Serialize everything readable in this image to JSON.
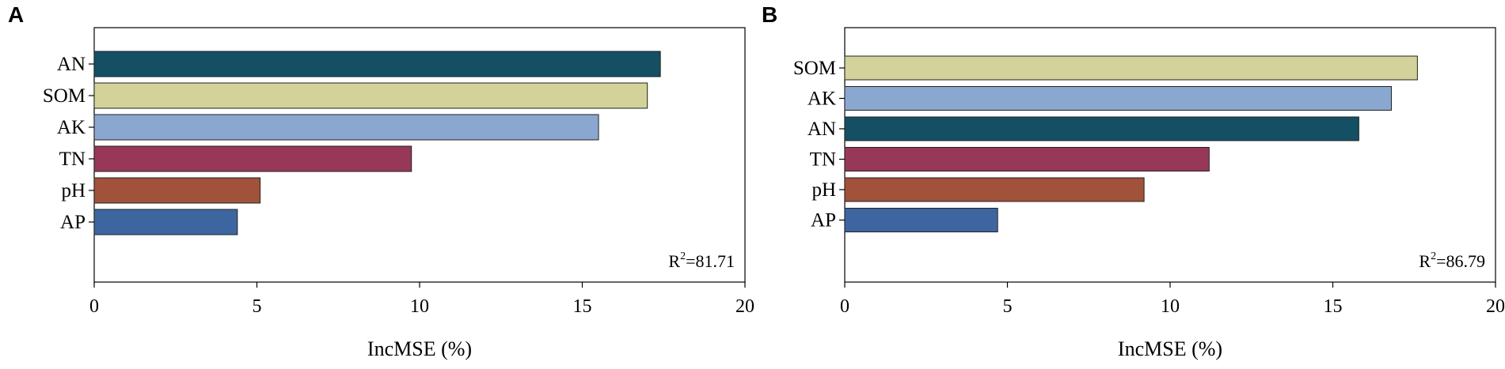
{
  "chart_data": [
    {
      "type": "bar",
      "orientation": "horizontal",
      "panel_label": "A",
      "categories": [
        "AN",
        "SOM",
        "AK",
        "TN",
        "pH",
        "AP"
      ],
      "values": [
        17.4,
        17.0,
        15.5,
        9.75,
        5.1,
        4.4
      ],
      "colors": [
        "#154f63",
        "#d3d29a",
        "#8aa7cf",
        "#973859",
        "#a1523a",
        "#3d66a0"
      ],
      "xlabel": "IncMSE (%)",
      "xlim": [
        0,
        20
      ],
      "xticks": [
        "0",
        "5",
        "10",
        "15",
        "20"
      ],
      "annotation": {
        "prefix": "R",
        "sup": "2",
        "suffix": "=81.71"
      }
    },
    {
      "type": "bar",
      "orientation": "horizontal",
      "panel_label": "B",
      "categories": [
        "SOM",
        "AK",
        "AN",
        "TN",
        "pH",
        "AP"
      ],
      "values": [
        17.6,
        16.8,
        15.8,
        11.2,
        9.2,
        4.7
      ],
      "colors": [
        "#d3d29a",
        "#8aa7cf",
        "#154f63",
        "#973859",
        "#a1523a",
        "#3d66a0"
      ],
      "xlabel": "IncMSE (%)",
      "xlim": [
        0,
        20
      ],
      "xticks": [
        "0",
        "5",
        "10",
        "15",
        "20"
      ],
      "annotation": {
        "prefix": "R",
        "sup": "2",
        "suffix": "=86.79"
      }
    }
  ]
}
